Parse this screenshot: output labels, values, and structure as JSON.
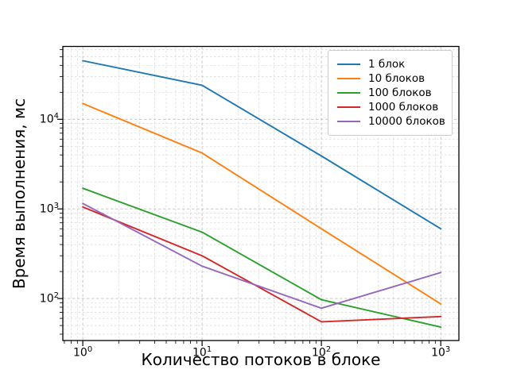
{
  "chart_data": {
    "type": "line",
    "title": "",
    "xlabel": "Количество потоков в блоке",
    "ylabel": "Время выполнения, мс",
    "x_scale": "log",
    "y_scale": "log",
    "grid": "both-major-and-minor, dashed",
    "legend_position": "upper right",
    "x": [
      1,
      10,
      100,
      1000
    ],
    "xlim": [
      0.68,
      1420
    ],
    "ylim": [
      34,
      65000
    ],
    "x_ticks": [
      {
        "value": 1,
        "base": "10",
        "exp": "0"
      },
      {
        "value": 10,
        "base": "10",
        "exp": "1"
      },
      {
        "value": 100,
        "base": "10",
        "exp": "2"
      },
      {
        "value": 1000,
        "base": "10",
        "exp": "3"
      }
    ],
    "y_ticks": [
      {
        "value": 100,
        "base": "10",
        "exp": "2"
      },
      {
        "value": 1000,
        "base": "10",
        "exp": "3"
      },
      {
        "value": 10000,
        "base": "10",
        "exp": "4"
      }
    ],
    "series": [
      {
        "name": "1 блок",
        "color": "#1f77b4",
        "values": [
          45000,
          24000,
          3900,
          600
        ]
      },
      {
        "name": "10 блоков",
        "color": "#ff7f0e",
        "values": [
          15000,
          4200,
          600,
          87
        ]
      },
      {
        "name": "100 блоков",
        "color": "#2ca02c",
        "values": [
          1700,
          550,
          97,
          48
        ]
      },
      {
        "name": "1000 блоков",
        "color": "#d62728",
        "values": [
          1050,
          300,
          55,
          63
        ]
      },
      {
        "name": "10000 блоков",
        "color": "#9467bd",
        "values": [
          1150,
          230,
          78,
          195
        ]
      }
    ]
  }
}
